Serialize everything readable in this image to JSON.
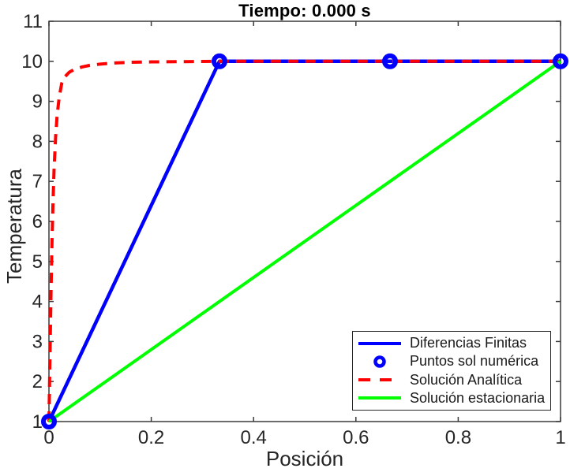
{
  "figure": {
    "background": "#FFFFFF"
  },
  "chart_data": {
    "type": "line",
    "title": "Tiempo: 0.000 s",
    "xlabel": "Posición",
    "ylabel": "Temperatura",
    "xlim": [
      0,
      1
    ],
    "ylim": [
      1,
      11
    ],
    "grid": false,
    "legend_position": "inside lower right",
    "xticks": [
      0,
      0.2,
      0.4,
      0.6,
      0.8,
      1
    ],
    "xtick_labels": [
      "0",
      "0.2",
      "0.4",
      "0.6",
      "0.8",
      "1"
    ],
    "yticks": [
      1,
      2,
      3,
      4,
      5,
      6,
      7,
      8,
      9,
      10,
      11
    ],
    "ytick_labels": [
      "1",
      "2",
      "3",
      "4",
      "5",
      "6",
      "7",
      "8",
      "9",
      "10",
      "11"
    ],
    "series": [
      {
        "name": "Diferencias Finitas",
        "type": "line",
        "linestyle": "solid",
        "color": "#0000FF",
        "linewidth": 4.5,
        "x": [
          0,
          0.33333,
          0.66667,
          1
        ],
        "y": [
          1,
          10,
          10,
          10
        ]
      },
      {
        "name": "Puntos sol numérica",
        "type": "scatter",
        "marker": "open-circle",
        "color": "#0000FF",
        "x": [
          0,
          0.33333,
          0.66667,
          1
        ],
        "y": [
          1,
          10,
          10,
          10
        ]
      },
      {
        "name": "Solución Analítica",
        "type": "line",
        "linestyle": "dashed",
        "color": "#FF0000",
        "linewidth": 4,
        "x": [
          0,
          0.002,
          0.004,
          0.006,
          0.008,
          0.01,
          0.013,
          0.016,
          0.02,
          0.025,
          0.03,
          0.04,
          0.05,
          0.065,
          0.08,
          0.1,
          0.13,
          0.16,
          0.2,
          0.25,
          0.32,
          0.4,
          0.5,
          0.65,
          0.8,
          1
        ],
        "y": [
          1,
          2.6,
          4.2,
          5.5,
          6.5,
          7.3,
          8.1,
          8.65,
          9.1,
          9.45,
          9.6,
          9.73,
          9.8,
          9.86,
          9.9,
          9.93,
          9.96,
          9.975,
          9.985,
          9.99,
          10,
          10,
          10,
          10,
          10,
          10
        ]
      },
      {
        "name": "Solución estacionaria",
        "type": "line",
        "linestyle": "solid",
        "color": "#00FF00",
        "linewidth": 4,
        "x": [
          0,
          1
        ],
        "y": [
          1,
          10
        ]
      }
    ]
  },
  "colors": {
    "axis": "#3a3a3a",
    "tick_text": "#262626",
    "title_text": "#000000",
    "background": "#FFFFFF"
  }
}
